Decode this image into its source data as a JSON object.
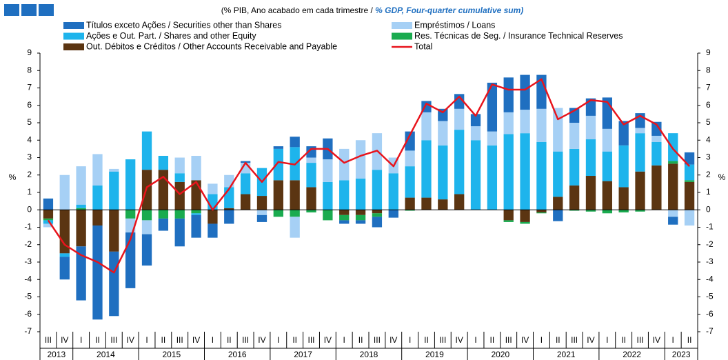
{
  "chart_data": {
    "type": "bar",
    "title_pt": "(% PIB, Ano acabado em cada trimestre / ",
    "title_en": "% GDP, Four-quarter cumulative sum)",
    "ylabel": "%",
    "y2label": "%",
    "categories": [
      "III",
      "IV",
      "I",
      "II",
      "III",
      "IV",
      "I",
      "II",
      "III",
      "IV",
      "I",
      "II",
      "III",
      "IV",
      "I",
      "II",
      "III",
      "IV",
      "I",
      "II",
      "III",
      "IV",
      "I",
      "II",
      "III",
      "IV",
      "I",
      "II",
      "III",
      "IV",
      "I",
      "II",
      "III",
      "IV",
      "I",
      "II",
      "III",
      "IV",
      "I",
      "II"
    ],
    "years": [
      "2013",
      "2013",
      "2014",
      "2014",
      "2014",
      "2014",
      "2015",
      "2015",
      "2015",
      "2015",
      "2016",
      "2016",
      "2016",
      "2016",
      "2017",
      "2017",
      "2017",
      "2017",
      "2018",
      "2018",
      "2018",
      "2018",
      "2019",
      "2019",
      "2019",
      "2019",
      "2020",
      "2020",
      "2020",
      "2020",
      "2021",
      "2021",
      "2021",
      "2021",
      "2022",
      "2022",
      "2022",
      "2022",
      "2023",
      "2023"
    ],
    "series": [
      {
        "name": "Out. Débitos e Créditos / Other Accounts Receivable and Payable",
        "color": "#5b3512",
        "values": [
          -0.5,
          -2.5,
          -2.1,
          -0.9,
          -2.4,
          0,
          2.3,
          2.3,
          1.6,
          1.7,
          -0.8,
          0.1,
          0.9,
          0.8,
          1.7,
          1.7,
          1.3,
          0,
          -0.3,
          -0.3,
          -0.2,
          0,
          0.7,
          0.7,
          0.6,
          0.9,
          0,
          0,
          -0.6,
          -0.7,
          -0.15,
          0.75,
          1.4,
          1.95,
          1.65,
          1.3,
          2.2,
          2.55,
          2.65,
          1.6
        ]
      },
      {
        "name": "Res. Técnicas de Seg. / Insurance Technical Reserves",
        "color": "#1aab4f",
        "values": [
          -0.1,
          0,
          0.1,
          0,
          0,
          -0.5,
          -0.6,
          -0.5,
          -0.5,
          -0.2,
          0,
          0,
          0,
          0,
          -0.4,
          -0.4,
          -0.15,
          -0.6,
          -0.3,
          -0.3,
          -0.2,
          0,
          -0.05,
          0,
          0,
          0,
          0,
          0,
          -0.1,
          -0.1,
          -0.05,
          0,
          -0.05,
          -0.1,
          -0.2,
          -0.15,
          -0.1,
          0,
          0.15,
          0.1
        ]
      },
      {
        "name": "Ações e Out. Part. / Shares and other Equity",
        "color": "#1eb4ec",
        "values": [
          -0.2,
          -0.2,
          0.2,
          1.4,
          2.2,
          2.9,
          2.2,
          0.8,
          0.5,
          -0.1,
          0.9,
          1.2,
          1.2,
          1.6,
          1.8,
          1.9,
          1.4,
          1.6,
          1.7,
          1.8,
          2.3,
          2.1,
          1.8,
          3.3,
          3.1,
          3.7,
          4.0,
          3.7,
          4.35,
          4.4,
          3.9,
          2.6,
          2.1,
          2.1,
          1.7,
          2.4,
          2.2,
          1.35,
          1.6,
          0.9
        ]
      },
      {
        "name": "Empréstimos / Loans",
        "color": "#a6d0f5",
        "values": [
          -0.2,
          2.0,
          2.2,
          1.8,
          0.15,
          -0.8,
          -0.8,
          0,
          0.9,
          1.4,
          0.6,
          0.7,
          0.6,
          -0.3,
          0,
          -1.2,
          0.3,
          1.3,
          1.8,
          2.2,
          2.1,
          0.9,
          0.9,
          1.6,
          1.4,
          1.2,
          0.8,
          0.8,
          1.25,
          1.35,
          1.9,
          2.5,
          1.5,
          1.35,
          1.3,
          0,
          0.3,
          0.35,
          -0.4,
          -0.9
        ]
      },
      {
        "name": "Títulos exceto Ações / Securities other than Shares",
        "color": "#1f6fc0",
        "values": [
          0.65,
          -1.3,
          -3.1,
          -5.4,
          -3.7,
          -3.2,
          -1.8,
          -0.7,
          -1.6,
          -1.3,
          -0.8,
          -0.8,
          0.1,
          -0.4,
          0.15,
          0.6,
          0.65,
          1.2,
          -0.2,
          -0.2,
          -0.6,
          -0.45,
          1.1,
          0.65,
          0.7,
          0.85,
          0.7,
          2.8,
          2.0,
          2.0,
          1.95,
          -0.65,
          0.85,
          1.0,
          1.8,
          1.4,
          0.85,
          0.8,
          -0.45,
          0.7
        ]
      },
      {
        "name": "Total",
        "color": "#e8141c",
        "line": true,
        "values": [
          -0.6,
          -2.0,
          -2.6,
          -3.0,
          -3.6,
          -1.7,
          1.3,
          1.9,
          0.9,
          1.6,
          0.0,
          1.2,
          2.7,
          1.6,
          2.75,
          2.6,
          3.5,
          3.5,
          2.7,
          3.1,
          3.4,
          2.5,
          4.3,
          6.1,
          5.6,
          6.5,
          5.4,
          7.2,
          6.9,
          6.9,
          7.5,
          5.2,
          5.7,
          6.3,
          6.2,
          4.9,
          5.4,
          4.9,
          3.5,
          2.5
        ]
      }
    ],
    "ylim": [
      -7,
      9
    ],
    "yticks": [
      -7,
      -6,
      -5,
      -4,
      -3,
      -2,
      -1,
      0,
      1,
      2,
      3,
      4,
      5,
      6,
      7,
      8,
      9
    ],
    "y2lim": [
      -7,
      9
    ],
    "y2ticks": [
      -7,
      -6,
      -5,
      -4,
      -3,
      -2,
      -1,
      0,
      1,
      2,
      3,
      4,
      5,
      6,
      7,
      8,
      9
    ],
    "stacked": true
  }
}
